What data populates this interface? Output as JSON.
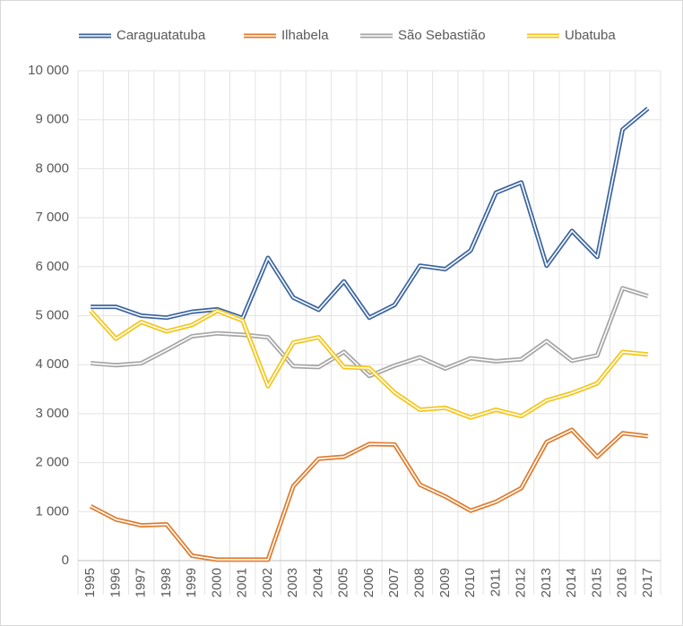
{
  "chart_data": {
    "type": "line",
    "categories": [
      "1995",
      "1996",
      "1997",
      "1998",
      "1999",
      "2000",
      "2001",
      "2002",
      "2003",
      "2004",
      "2005",
      "2006",
      "2007",
      "2008",
      "2009",
      "2010",
      "2011",
      "2012",
      "2013",
      "2014",
      "2015",
      "2016",
      "2017"
    ],
    "series": [
      {
        "name": "Caraguatatuba",
        "color": "#3b64a0",
        "values": [
          5180,
          5180,
          5000,
          4960,
          5080,
          5130,
          4950,
          6180,
          5370,
          5120,
          5700,
          4960,
          5220,
          6020,
          5950,
          6330,
          7510,
          7720,
          6020,
          6730,
          6200,
          8800,
          9230
        ]
      },
      {
        "name": "Ilhabela",
        "color": "#e07b2c",
        "values": [
          1110,
          840,
          720,
          740,
          100,
          20,
          20,
          20,
          1520,
          2080,
          2120,
          2380,
          2370,
          1550,
          1310,
          1020,
          1200,
          1480,
          2420,
          2670,
          2120,
          2600,
          2540
        ]
      },
      {
        "name": "São Sebastião",
        "color": "#a5a5a5",
        "values": [
          4030,
          3990,
          4030,
          4300,
          4580,
          4640,
          4610,
          4560,
          3970,
          3950,
          4260,
          3770,
          3980,
          4150,
          3920,
          4130,
          4070,
          4110,
          4480,
          4080,
          4190,
          5560,
          5400
        ]
      },
      {
        "name": "Ubatuba",
        "color": "#f5c518",
        "values": [
          5100,
          4530,
          4870,
          4680,
          4810,
          5100,
          4900,
          3560,
          4450,
          4560,
          3950,
          3930,
          3430,
          3080,
          3120,
          2920,
          3080,
          2950,
          3270,
          3420,
          3620,
          4260,
          4210
        ]
      }
    ],
    "ylim": [
      0,
      10000
    ],
    "yticks": [
      0,
      {
        "value": 1000,
        "label": "1 000"
      },
      {
        "value": 2000,
        "label": "2 000"
      },
      {
        "value": 3000,
        "label": "3 000"
      },
      {
        "value": 4000,
        "label": "4 000"
      },
      {
        "value": 5000,
        "label": "5 000"
      },
      {
        "value": 6000,
        "label": "6 000"
      },
      {
        "value": 7000,
        "label": "7 000"
      },
      {
        "value": 8000,
        "label": "8 000"
      },
      {
        "value": 9000,
        "label": "9 000"
      },
      {
        "value": 10000,
        "label": "10 000"
      }
    ],
    "grid": true,
    "legend": "top"
  }
}
